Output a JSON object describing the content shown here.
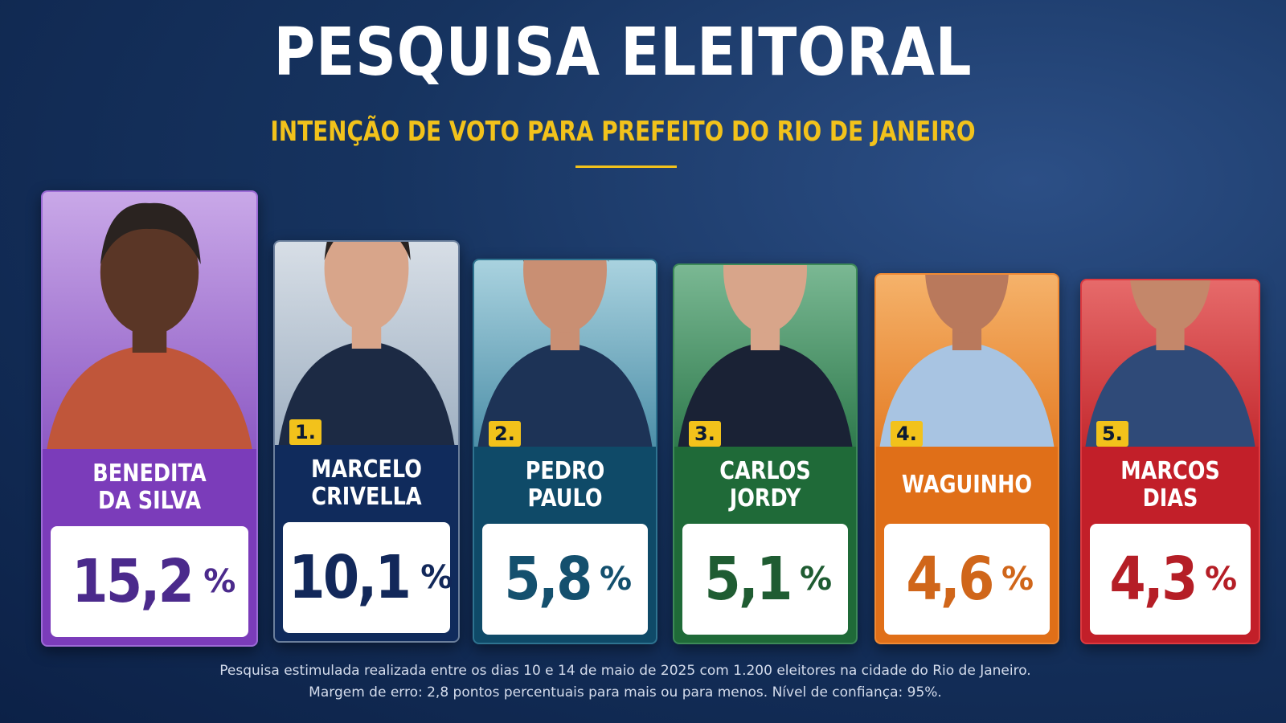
{
  "header": {
    "title": "PESQUISA ELEITORAL",
    "subtitle": "INTENÇÃO DE VOTO PARA PREFEITO DO RIO DE JANEIRO"
  },
  "candidates": [
    {
      "name_lines": [
        "BENEDITA",
        "DA SILVA"
      ],
      "value": "15,2",
      "unit": "%"
    },
    {
      "rank": "1.",
      "name_lines": [
        "MARCELO",
        "CRIVELLA"
      ],
      "value": "10,1",
      "unit": "%"
    },
    {
      "rank": "2.",
      "name_lines": [
        "PEDRO",
        "PAULO"
      ],
      "value": "5,8",
      "unit": "%"
    },
    {
      "rank": "3.",
      "name_lines": [
        "CARLOS",
        "JORDY"
      ],
      "value": "5,1",
      "unit": "%"
    },
    {
      "rank": "4.",
      "name_lines": [
        "WAGUINHO"
      ],
      "value": "4,6",
      "unit": "%"
    },
    {
      "rank": "5.",
      "name_lines": [
        "MARCOS",
        "DIAS"
      ],
      "value": "4,3",
      "unit": "%"
    }
  ],
  "footnote": [
    "Pesquisa estimulada realizada entre os dias 10 e 14 de maio de 2025 com 1.200 eleitores na cidade do Rio de Janeiro.",
    "Margem de erro: 2,8 pontos percentuais para mais ou para menos. Nível de confiança: 95%."
  ]
}
